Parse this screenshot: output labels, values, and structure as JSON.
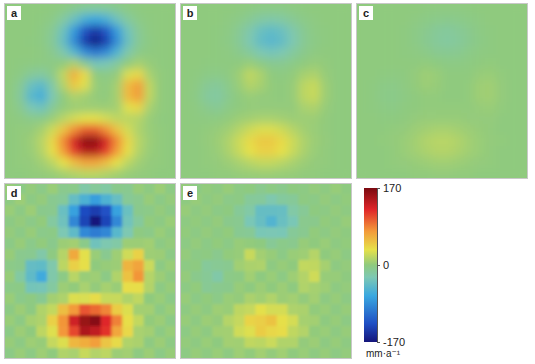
{
  "chart_data": [
    {
      "type": "heatmap",
      "title": "a",
      "tick_labels": false,
      "values": [
        [
          0,
          0,
          0,
          0,
          -1,
          -4,
          -10,
          -16,
          -18,
          -16,
          -10,
          -4,
          -1,
          0,
          0,
          0
        ],
        [
          0,
          0,
          0,
          -1,
          -5,
          -17,
          -37,
          -60,
          -70,
          -59,
          -36,
          -16,
          -5,
          -1,
          0,
          0
        ],
        [
          0,
          0,
          0,
          -3,
          -11,
          -35,
          -77,
          -126,
          -146,
          -124,
          -76,
          -34,
          -11,
          -2,
          0,
          0
        ],
        [
          0,
          0,
          -1,
          -3,
          -13,
          -40,
          -87,
          -142,
          -165,
          -140,
          -86,
          -38,
          -12,
          -3,
          0,
          0
        ],
        [
          0,
          0,
          0,
          -2,
          -8,
          -23,
          -49,
          -85,
          -102,
          -87,
          -53,
          -22,
          -6,
          -1,
          0,
          0
        ],
        [
          0,
          -1,
          -2,
          -3,
          -3,
          1,
          12,
          -10,
          -31,
          -29,
          -16,
          1,
          9,
          3,
          0,
          0
        ],
        [
          0,
          -4,
          -13,
          -17,
          -6,
          19,
          62,
          37,
          0,
          -5,
          2,
          29,
          39,
          10,
          1,
          0
        ],
        [
          -1,
          -11,
          -38,
          -48,
          -19,
          13,
          48,
          31,
          4,
          -1,
          9,
          56,
          73,
          19,
          1,
          0
        ],
        [
          -1,
          -14,
          -49,
          -61,
          -26,
          0,
          12,
          8,
          2,
          0,
          9,
          56,
          73,
          19,
          1,
          0
        ],
        [
          -1,
          -8,
          -28,
          -35,
          -13,
          1,
          5,
          6,
          6,
          5,
          8,
          32,
          40,
          10,
          1,
          0
        ],
        [
          0,
          -2,
          -6,
          -6,
          4,
          16,
          26,
          33,
          33,
          26,
          18,
          17,
          15,
          4,
          0,
          0
        ],
        [
          0,
          1,
          2,
          9,
          24,
          50,
          79,
          99,
          99,
          79,
          50,
          26,
          12,
          4,
          1,
          0
        ],
        [
          0,
          1,
          5,
          16,
          40,
          81,
          127,
          160,
          160,
          127,
          81,
          40,
          16,
          5,
          1,
          0
        ],
        [
          0,
          1,
          4,
          14,
          35,
          72,
          113,
          142,
          142,
          113,
          72,
          35,
          14,
          4,
          1,
          0
        ],
        [
          0,
          1,
          2,
          7,
          17,
          34,
          54,
          68,
          68,
          54,
          34,
          17,
          7,
          2,
          1,
          0
        ],
        [
          0,
          0,
          1,
          2,
          4,
          9,
          14,
          18,
          18,
          14,
          9,
          4,
          2,
          1,
          0,
          0
        ]
      ]
    },
    {
      "type": "heatmap",
      "title": "b",
      "tick_labels": false,
      "values": [
        [
          0,
          0,
          0,
          0,
          0,
          -1,
          -3,
          -5,
          -5,
          -5,
          -3,
          -1,
          0,
          0,
          0,
          0
        ],
        [
          0,
          0,
          0,
          0,
          -2,
          -5,
          -11,
          -18,
          -21,
          -18,
          -11,
          -5,
          -2,
          0,
          0,
          0
        ],
        [
          0,
          0,
          0,
          -1,
          -3,
          -11,
          -23,
          -38,
          -44,
          -37,
          -23,
          -10,
          -3,
          -1,
          0,
          0
        ],
        [
          0,
          0,
          0,
          -1,
          -4,
          -12,
          -26,
          -43,
          -50,
          -42,
          -26,
          -11,
          -4,
          -1,
          0,
          0
        ],
        [
          0,
          0,
          0,
          -1,
          -2,
          -7,
          -15,
          -26,
          -31,
          -26,
          -16,
          -7,
          -2,
          0,
          0,
          0
        ],
        [
          0,
          0,
          -1,
          -1,
          -1,
          0,
          4,
          -3,
          -9,
          -9,
          -5,
          0,
          3,
          1,
          0,
          0
        ],
        [
          0,
          -1,
          -4,
          -5,
          -2,
          6,
          19,
          11,
          0,
          -2,
          1,
          9,
          12,
          3,
          0,
          0
        ],
        [
          0,
          -3,
          -11,
          -14,
          -6,
          4,
          14,
          9,
          1,
          0,
          3,
          17,
          22,
          6,
          0,
          0
        ],
        [
          0,
          -4,
          -15,
          -18,
          -8,
          0,
          4,
          2,
          1,
          0,
          3,
          17,
          22,
          6,
          0,
          0
        ],
        [
          0,
          -2,
          -8,
          -11,
          -4,
          0,
          2,
          2,
          2,
          2,
          2,
          10,
          12,
          3,
          0,
          0
        ],
        [
          0,
          -1,
          -2,
          -2,
          1,
          5,
          8,
          10,
          10,
          8,
          5,
          5,
          5,
          1,
          0,
          0
        ],
        [
          0,
          0,
          1,
          3,
          7,
          15,
          24,
          30,
          30,
          24,
          15,
          8,
          4,
          1,
          0,
          0
        ],
        [
          0,
          0,
          2,
          5,
          12,
          24,
          38,
          48,
          48,
          38,
          24,
          12,
          5,
          2,
          0,
          0
        ],
        [
          0,
          0,
          1,
          4,
          11,
          22,
          34,
          43,
          43,
          34,
          22,
          11,
          4,
          1,
          0,
          0
        ],
        [
          0,
          0,
          1,
          2,
          5,
          10,
          16,
          20,
          20,
          16,
          10,
          5,
          2,
          1,
          0,
          0
        ],
        [
          0,
          0,
          0,
          1,
          1,
          3,
          4,
          5,
          5,
          4,
          3,
          1,
          1,
          0,
          0,
          0
        ]
      ]
    },
    {
      "type": "heatmap",
      "title": "c",
      "tick_labels": false,
      "values": [
        [
          0,
          0,
          0,
          0,
          0,
          0,
          -1,
          -2,
          -2,
          -2,
          -1,
          0,
          0,
          0,
          0,
          0
        ],
        [
          0,
          0,
          0,
          0,
          0,
          -2,
          -4,
          -6,
          -7,
          -6,
          -4,
          -2,
          0,
          0,
          0,
          0
        ],
        [
          0,
          0,
          0,
          0,
          -1,
          -4,
          -8,
          -13,
          -15,
          -12,
          -8,
          -3,
          -1,
          0,
          0,
          0
        ],
        [
          0,
          0,
          0,
          0,
          -1,
          -4,
          -9,
          -14,
          -17,
          -14,
          -9,
          -4,
          -1,
          0,
          0,
          0
        ],
        [
          0,
          0,
          0,
          0,
          -1,
          -2,
          -5,
          -9,
          -10,
          -9,
          -5,
          -2,
          -1,
          0,
          0,
          0
        ],
        [
          0,
          0,
          0,
          0,
          0,
          0,
          1,
          -1,
          -3,
          -3,
          -2,
          0,
          1,
          0,
          0,
          0
        ],
        [
          0,
          0,
          -1,
          -2,
          -1,
          2,
          6,
          4,
          0,
          0,
          0,
          3,
          4,
          1,
          0,
          0
        ],
        [
          0,
          -1,
          -4,
          -5,
          -2,
          1,
          5,
          3,
          0,
          0,
          1,
          6,
          7,
          2,
          0,
          0
        ],
        [
          0,
          -1,
          -5,
          -6,
          -3,
          0,
          1,
          1,
          0,
          0,
          1,
          6,
          7,
          2,
          0,
          0
        ],
        [
          0,
          -1,
          -3,
          -4,
          -1,
          0,
          1,
          1,
          1,
          1,
          1,
          3,
          4,
          1,
          0,
          0
        ],
        [
          0,
          0,
          -1,
          -1,
          0,
          2,
          3,
          3,
          3,
          3,
          2,
          2,
          2,
          0,
          0,
          0
        ],
        [
          0,
          0,
          0,
          1,
          2,
          5,
          8,
          10,
          10,
          8,
          5,
          3,
          1,
          0,
          0,
          0
        ],
        [
          0,
          0,
          1,
          2,
          4,
          8,
          13,
          16,
          16,
          13,
          8,
          4,
          2,
          1,
          0,
          0
        ],
        [
          0,
          0,
          0,
          1,
          4,
          7,
          11,
          14,
          14,
          11,
          7,
          4,
          1,
          0,
          0,
          0
        ],
        [
          0,
          0,
          0,
          1,
          2,
          3,
          5,
          7,
          7,
          5,
          3,
          2,
          1,
          0,
          0,
          0
        ],
        [
          0,
          0,
          0,
          0,
          0,
          1,
          1,
          2,
          2,
          1,
          1,
          0,
          0,
          0,
          0,
          0
        ]
      ]
    },
    {
      "type": "heatmap",
      "title": "d",
      "tick_labels": false,
      "values": [
        [
          3,
          -4,
          2,
          -5,
          4,
          -8,
          -6,
          -21,
          -14,
          -19,
          -7,
          -9,
          3,
          -2,
          5,
          -3
        ],
        [
          -2,
          5,
          -3,
          2,
          -9,
          -13,
          -41,
          -56,
          -74,
          -55,
          -40,
          -12,
          -8,
          3,
          -4,
          2
        ],
        [
          4,
          -3,
          5,
          -7,
          -8,
          -39,
          -73,
          -131,
          -141,
          -128,
          -72,
          -38,
          -7,
          -5,
          2,
          -4
        ],
        [
          -3,
          2,
          -5,
          1,
          -17,
          -36,
          -91,
          -137,
          -169,
          -136,
          -90,
          -34,
          -15,
          1,
          -3,
          4
        ],
        [
          2,
          -4,
          3,
          -6,
          -4,
          -27,
          -45,
          -89,
          -98,
          -91,
          -49,
          -26,
          -2,
          -5,
          4,
          -2
        ],
        [
          -4,
          3,
          -6,
          1,
          -7,
          5,
          8,
          -6,
          -35,
          -25,
          -20,
          5,
          5,
          7,
          -3,
          2
        ],
        [
          3,
          -8,
          -9,
          -21,
          -2,
          15,
          66,
          33,
          4,
          -9,
          6,
          25,
          43,
          6,
          5,
          -4
        ],
        [
          -5,
          -7,
          -42,
          -44,
          -23,
          17,
          44,
          35,
          0,
          3,
          5,
          60,
          69,
          23,
          -3,
          4
        ],
        [
          3,
          -18,
          -45,
          -65,
          -22,
          -4,
          16,
          4,
          6,
          -4,
          13,
          52,
          77,
          15,
          5,
          -2
        ],
        [
          -5,
          -4,
          -32,
          -31,
          -17,
          5,
          1,
          10,
          2,
          9,
          4,
          36,
          36,
          14,
          -3,
          3
        ],
        [
          4,
          -6,
          -2,
          -10,
          8,
          12,
          30,
          29,
          37,
          22,
          22,
          13,
          19,
          0,
          4,
          -4
        ],
        [
          -3,
          5,
          -2,
          13,
          20,
          54,
          75,
          103,
          95,
          83,
          46,
          30,
          8,
          8,
          -3,
          4
        ],
        [
          4,
          -3,
          9,
          12,
          44,
          77,
          131,
          156,
          164,
          123,
          85,
          36,
          20,
          1,
          5,
          -4
        ],
        [
          -4,
          5,
          0,
          18,
          31,
          76,
          109,
          146,
          138,
          117,
          68,
          39,
          10,
          8,
          -3,
          4
        ],
        [
          3,
          -3,
          6,
          3,
          21,
          30,
          58,
          64,
          72,
          50,
          38,
          13,
          11,
          -2,
          5,
          -3
        ],
        [
          -4,
          4,
          -3,
          6,
          0,
          13,
          10,
          22,
          14,
          18,
          5,
          8,
          -2,
          5,
          -4,
          3
        ]
      ]
    },
    {
      "type": "heatmap",
      "title": "e",
      "tick_labels": false,
      "values": [
        [
          2,
          -3,
          1,
          -2,
          3,
          -3,
          -1,
          -8,
          -3,
          -7,
          -1,
          -3,
          2,
          -2,
          3,
          -1
        ],
        [
          -1,
          3,
          -2,
          2,
          -5,
          -3,
          -14,
          -15,
          -24,
          -16,
          -13,
          -2,
          -4,
          2,
          -3,
          1
        ],
        [
          3,
          -2,
          2,
          -4,
          -1,
          -13,
          -20,
          -41,
          -41,
          -40,
          -20,
          -12,
          -1,
          -3,
          2,
          -2
        ],
        [
          -2,
          1,
          -3,
          2,
          -7,
          -9,
          -29,
          -40,
          -53,
          -39,
          -29,
          -8,
          -7,
          1,
          -2,
          3
        ],
        [
          1,
          -3,
          2,
          -3,
          1,
          -10,
          -12,
          -29,
          -28,
          -29,
          -13,
          -9,
          1,
          -3,
          2,
          -1
        ],
        [
          -3,
          2,
          -4,
          1,
          -4,
          3,
          1,
          -1,
          -12,
          -6,
          -8,
          3,
          0,
          4,
          -2,
          1
        ],
        [
          2,
          -4,
          -2,
          -8,
          1,
          3,
          22,
          8,
          3,
          -4,
          4,
          6,
          15,
          0,
          3,
          -3
        ],
        [
          -3,
          -1,
          -14,
          -11,
          -9,
          7,
          11,
          12,
          -2,
          3,
          0,
          20,
          19,
          9,
          -2,
          2
        ],
        [
          2,
          -7,
          -12,
          -21,
          -5,
          -3,
          7,
          -1,
          4,
          -3,
          6,
          14,
          25,
          3,
          3,
          -1
        ],
        [
          -3,
          1,
          -11,
          -8,
          -7,
          3,
          -1,
          5,
          0,
          5,
          -1,
          13,
          9,
          6,
          -2,
          2
        ],
        [
          3,
          -4,
          1,
          -5,
          4,
          2,
          11,
          7,
          13,
          5,
          8,
          2,
          8,
          -2,
          3,
          -3
        ],
        [
          -2,
          3,
          -2,
          6,
          4,
          18,
          21,
          33,
          27,
          27,
          12,
          11,
          1,
          4,
          -2,
          3
        ],
        [
          3,
          -2,
          5,
          2,
          15,
          21,
          42,
          45,
          51,
          35,
          27,
          9,
          8,
          -1,
          3,
          -3
        ],
        [
          -3,
          3,
          -2,
          7,
          8,
          25,
          31,
          46,
          40,
          37,
          19,
          14,
          1,
          4,
          -2,
          3
        ],
        [
          2,
          -2,
          4,
          -1,
          8,
          7,
          19,
          17,
          23,
          13,
          13,
          2,
          5,
          -2,
          3,
          -2
        ],
        [
          -3,
          3,
          -2,
          4,
          -2,
          6,
          1,
          8,
          2,
          7,
          0,
          4,
          -2,
          3,
          -3,
          2
        ]
      ]
    }
  ],
  "colorbar": {
    "range": [
      -170,
      170
    ],
    "ticks": [
      -170,
      0,
      170
    ],
    "label": "mm·a⁻¹"
  }
}
